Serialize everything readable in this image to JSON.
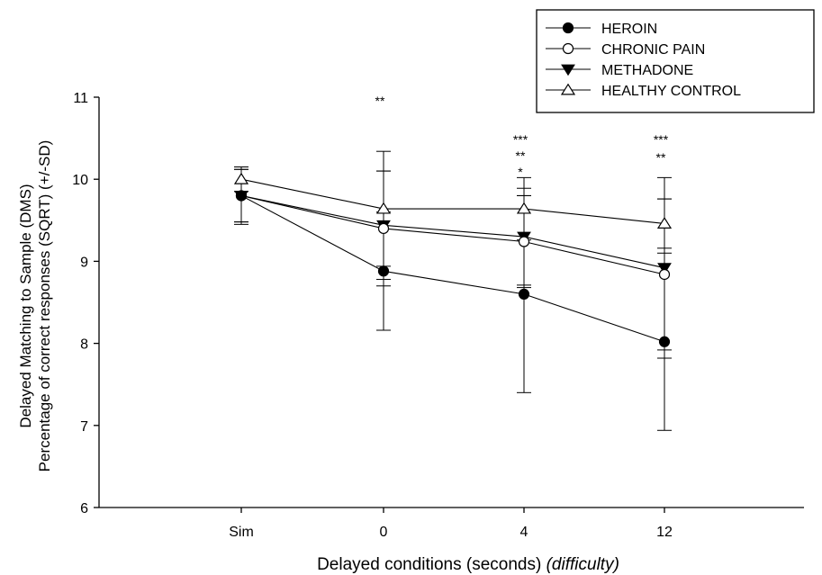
{
  "chart_data": {
    "type": "line",
    "title": "",
    "xlabel": "Delayed conditions (seconds)",
    "xlabel_italic": "(difficulty)",
    "ylabel": [
      "Delayed Matching to Sample (DMS)",
      "Percentage of correct responses (SQRT) (+/-SD)"
    ],
    "ylim": [
      6,
      11
    ],
    "yticks": [
      6,
      7,
      8,
      9,
      10,
      11
    ],
    "categories": [
      "Sim",
      "0",
      "4",
      "12"
    ],
    "legend_position": "top-right",
    "series": [
      {
        "name": "HEROIN",
        "marker": "filled-circle",
        "values": [
          9.8,
          8.88,
          8.6,
          8.02
        ],
        "sd": [
          0.35,
          0.72,
          1.2,
          1.08
        ]
      },
      {
        "name": "CHRONIC PAIN",
        "marker": "open-circle",
        "values": [
          9.8,
          9.4,
          9.24,
          8.84
        ],
        "sd": [
          0.32,
          0.7,
          0.56,
          0.92
        ]
      },
      {
        "name": "METHADONE",
        "marker": "filled-triangle-down",
        "values": [
          9.8,
          9.44,
          9.3,
          8.92
        ],
        "sd": [
          0.32,
          0.66,
          0.59,
          1.1
        ]
      },
      {
        "name": "HEALTHY CONTROL",
        "marker": "open-triangle-up",
        "values": [
          10.0,
          9.64,
          9.64,
          9.46
        ],
        "sd": [
          0.15,
          0.7,
          0.38,
          0.3
        ]
      }
    ],
    "annotations": [
      {
        "category": "0",
        "lines": [
          "**"
        ]
      },
      {
        "category": "4",
        "lines": [
          "***",
          "**",
          "*"
        ]
      },
      {
        "category": "12",
        "lines": [
          "***",
          "**"
        ]
      }
    ]
  }
}
